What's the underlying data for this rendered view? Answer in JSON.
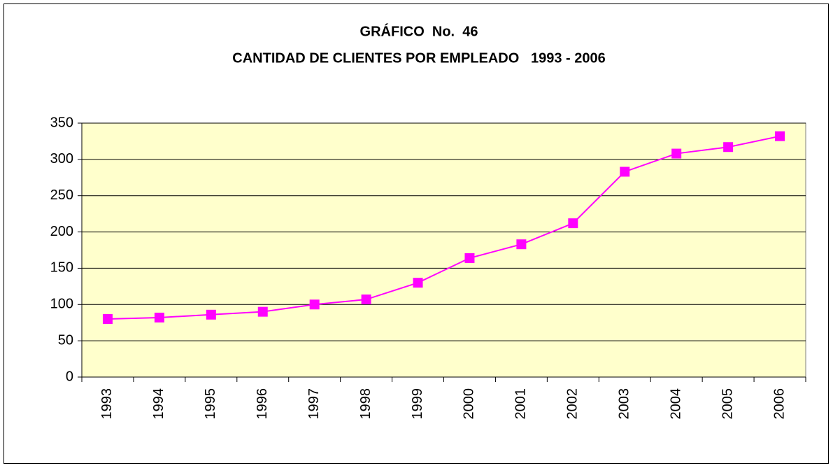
{
  "chart_data": {
    "type": "line",
    "title": "GRÁFICO  No.  46",
    "subtitle": "CANTIDAD DE CLIENTES POR EMPLEADO   1993 - 2006",
    "categories": [
      "1993",
      "1994",
      "1995",
      "1996",
      "1997",
      "1998",
      "1999",
      "2000",
      "2001",
      "2002",
      "2003",
      "2004",
      "2005",
      "2006"
    ],
    "series": [
      {
        "name": "Clientes por empleado",
        "color": "#ff00ff",
        "values": [
          80,
          82,
          86,
          90,
          100,
          107,
          130,
          164,
          183,
          212,
          283,
          308,
          317,
          332
        ]
      }
    ],
    "ylim": [
      0,
      350
    ],
    "yticks": [
      0,
      50,
      100,
      150,
      200,
      250,
      300,
      350
    ],
    "grid": true
  }
}
